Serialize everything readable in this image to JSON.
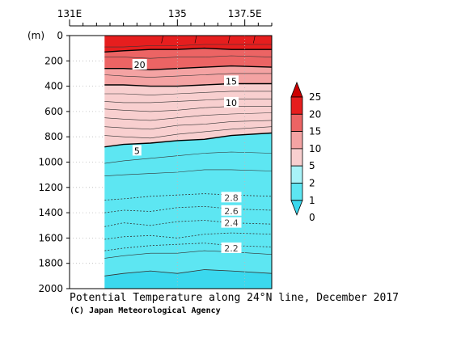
{
  "chart_data": {
    "type": "heatmap",
    "title": "Potential Temperature along 24°N line, December 2017",
    "credit": "(C) Japan Meteorological Agency",
    "x_axis": {
      "range": [
        131,
        138.5
      ],
      "ticks": [
        {
          "value": 131,
          "label": "131E"
        },
        {
          "value": 135,
          "label": "135"
        },
        {
          "value": 137.5,
          "label": "137.5E"
        }
      ],
      "data_start": 132.3
    },
    "y_axis": {
      "unit_label": "(m)",
      "range": [
        0,
        2000
      ],
      "ticks": [
        0,
        200,
        400,
        600,
        800,
        1000,
        1200,
        1400,
        1600,
        1800,
        2000
      ]
    },
    "levels": [
      0,
      1,
      2,
      5,
      10,
      15,
      20,
      25
    ],
    "level_colors": [
      "#3ad8ee",
      "#5de6f2",
      "#a8f3f8",
      "#f8cfcf",
      "#f4a3a3",
      "#ec6464",
      "#e61e1e",
      "#cc0000"
    ],
    "colorbar_labels": [
      "25",
      "20",
      "15",
      "10",
      "5",
      "2",
      "1",
      "0"
    ],
    "contour_labels": [
      {
        "text": "20",
        "lon": 133.6,
        "depth": 230
      },
      {
        "text": "15",
        "lon": 137.0,
        "depth": 360
      },
      {
        "text": "10",
        "lon": 137.0,
        "depth": 530
      },
      {
        "text": "5",
        "lon": 133.5,
        "depth": 910
      },
      {
        "text": "2.8",
        "lon": 137.0,
        "depth": 1280
      },
      {
        "text": "2.6",
        "lon": 137.0,
        "depth": 1385
      },
      {
        "text": "2.4",
        "lon": 137.0,
        "depth": 1480
      },
      {
        "text": "2.2",
        "lon": 137.0,
        "depth": 1680
      }
    ],
    "boundaries": {
      "lon": [
        132.3,
        133.0,
        134.0,
        135.0,
        136.0,
        137.0,
        138.5
      ],
      "t20": [
        130,
        120,
        110,
        110,
        100,
        110,
        110
      ],
      "t15": [
        260,
        260,
        270,
        260,
        250,
        240,
        250
      ],
      "t10": [
        390,
        390,
        400,
        400,
        390,
        380,
        380
      ],
      "t5": [
        880,
        860,
        850,
        830,
        820,
        790,
        770
      ],
      "t2": [
        1900,
        1880,
        1860,
        1880,
        1850,
        1860,
        1880
      ]
    },
    "thin_isotherms": [
      [
        90,
        90,
        80,
        80,
        70,
        70,
        70
      ],
      [
        170,
        170,
        180,
        170,
        170,
        160,
        170
      ],
      [
        310,
        320,
        330,
        320,
        310,
        300,
        300
      ],
      [
        460,
        460,
        470,
        460,
        450,
        440,
        440
      ],
      [
        520,
        530,
        530,
        520,
        510,
        500,
        500
      ],
      [
        580,
        590,
        600,
        590,
        570,
        560,
        560
      ],
      [
        650,
        660,
        670,
        650,
        630,
        620,
        610
      ],
      [
        720,
        730,
        740,
        710,
        700,
        680,
        670
      ],
      [
        790,
        800,
        810,
        780,
        760,
        740,
        720
      ],
      [
        1010,
        990,
        970,
        950,
        930,
        920,
        930
      ],
      [
        1110,
        1100,
        1090,
        1080,
        1060,
        1060,
        1070
      ],
      [
        1760,
        1740,
        1720,
        1720,
        1700,
        1710,
        1730
      ]
    ],
    "dotted_isotherms": [
      [
        1300,
        1290,
        1270,
        1260,
        1250,
        1260,
        1270
      ],
      [
        1400,
        1380,
        1390,
        1360,
        1350,
        1370,
        1380
      ],
      [
        1510,
        1480,
        1500,
        1470,
        1460,
        1480,
        1490
      ],
      [
        1610,
        1590,
        1580,
        1600,
        1570,
        1560,
        1570
      ],
      [
        1700,
        1680,
        1660,
        1650,
        1640,
        1660,
        1670
      ]
    ],
    "grid": "dotted"
  }
}
